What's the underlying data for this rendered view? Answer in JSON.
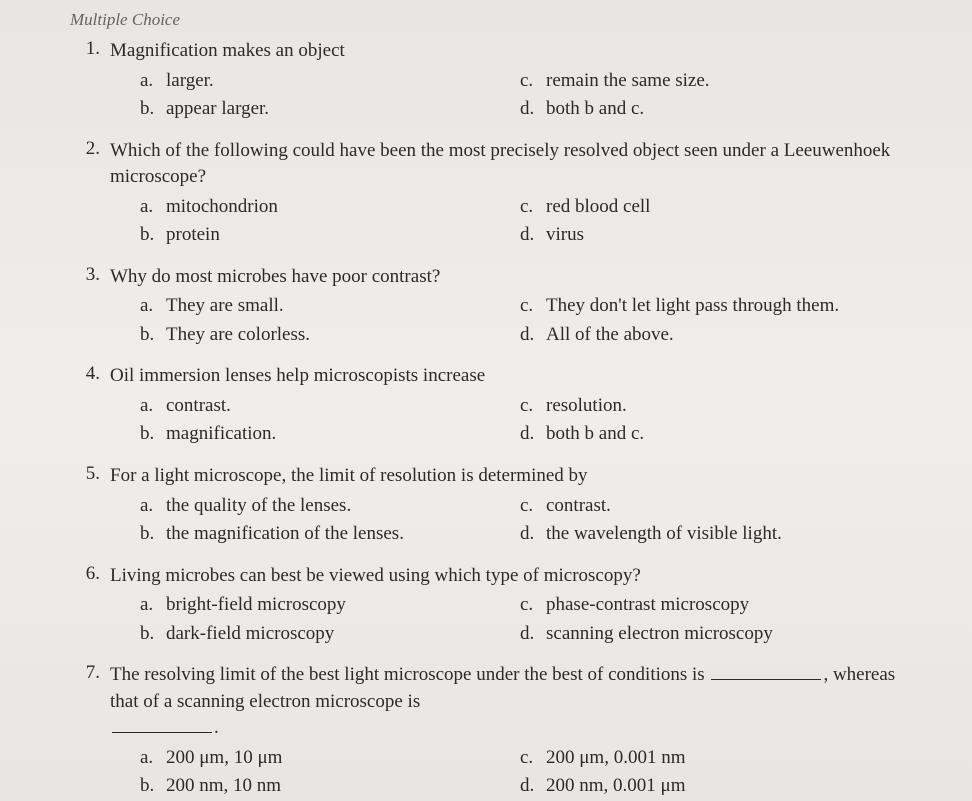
{
  "header": "Multiple Choice",
  "questions": [
    {
      "num": "1.",
      "text": "Magnification makes an object",
      "options": {
        "a": "larger.",
        "b": "appear larger.",
        "c": "remain the same size.",
        "d": "both b and c."
      }
    },
    {
      "num": "2.",
      "text": "Which of the following could have been the most precisely resolved object seen under a Leeuwenhoek microscope?",
      "options": {
        "a": "mitochondrion",
        "b": "protein",
        "c": "red blood cell",
        "d": "virus"
      }
    },
    {
      "num": "3.",
      "text": "Why do most microbes have poor contrast?",
      "options": {
        "a": "They are small.",
        "b": "They are colorless.",
        "c": "They don't let light pass through them.",
        "d": "All of the above."
      }
    },
    {
      "num": "4.",
      "text": "Oil immersion lenses help microscopists increase",
      "options": {
        "a": "contrast.",
        "b": "magnification.",
        "c": "resolution.",
        "d": "both b and c."
      }
    },
    {
      "num": "5.",
      "text": "For a light microscope, the limit of resolution is determined by",
      "options": {
        "a": "the quality of the lenses.",
        "b": "the magnification of the lenses.",
        "c": "contrast.",
        "d": "the wavelength of visible light."
      }
    },
    {
      "num": "6.",
      "text": "Living microbes can best be viewed using which type of microscopy?",
      "options": {
        "a": "bright-field microscopy",
        "b": "dark-field microscopy",
        "c": "phase-contrast microscopy",
        "d": "scanning electron microscopy"
      }
    },
    {
      "num": "7.",
      "text_parts": {
        "p1": "The resolving limit of the best light microscope under the best of conditions is ",
        "p2": ", whereas that of a scanning electron microscope is ",
        "p3": "."
      },
      "options": {
        "a": "200 μm, 10 μm",
        "b": "200 nm, 10 nm",
        "c": "200 μm, 0.001 nm",
        "d": "200 nm, 0.001 μm"
      }
    }
  ]
}
